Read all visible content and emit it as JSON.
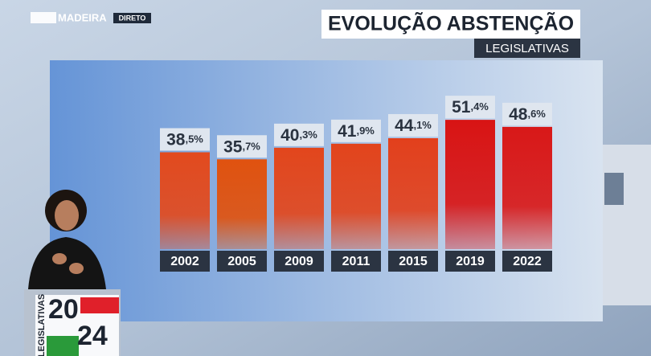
{
  "broadcast": {
    "logo": "MADEIRA",
    "badge": "DIRETO",
    "election_label": "LEGISLATIVAS",
    "year_top": "20",
    "year_bottom": "24"
  },
  "chart_data": {
    "type": "bar",
    "title": "EVOLUÇÃO ABSTENÇÃO",
    "subtitle": "LEGISLATIVAS",
    "categories": [
      "2002",
      "2005",
      "2009",
      "2011",
      "2015",
      "2019",
      "2022"
    ],
    "values": [
      38.5,
      35.7,
      40.3,
      41.9,
      44.1,
      51.4,
      48.6
    ],
    "value_labels": [
      "38,5%",
      "35,7%",
      "40,3%",
      "41,9%",
      "44,1%",
      "51,4%",
      "48,6%"
    ],
    "colors": [
      "#e24a1e",
      "#e0520f",
      "#e2461c",
      "#e2441c",
      "#e2401c",
      "#d81414",
      "#d81818"
    ]
  }
}
